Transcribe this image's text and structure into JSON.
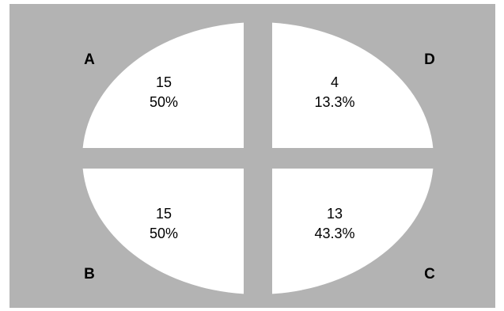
{
  "chart_data": {
    "type": "pie",
    "quadrants": [
      {
        "label": "A",
        "count": 15,
        "percent": "50%",
        "position": "top-left"
      },
      {
        "label": "D",
        "count": 4,
        "percent": "13.3%",
        "position": "top-right"
      },
      {
        "label": "B",
        "count": 15,
        "percent": "50%",
        "position": "bottom-left"
      },
      {
        "label": "C",
        "count": 13,
        "percent": "43.3%",
        "position": "bottom-right"
      }
    ]
  },
  "colors": {
    "background": "#b3b3b3",
    "sector": "#ffffff",
    "text": "#000000"
  }
}
